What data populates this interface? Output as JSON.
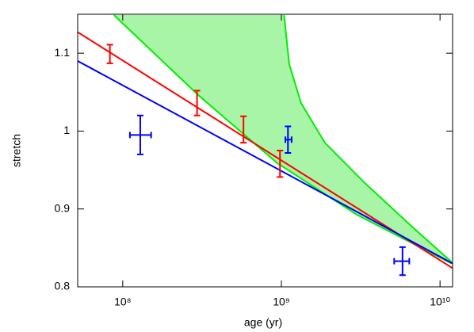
{
  "chart_data": {
    "type": "scatter",
    "x_label": "age (yr)",
    "y_label": "stretch",
    "xscale": "log",
    "xlim": [
      52000000.0,
      12000000000.0
    ],
    "ylim": [
      0.8,
      1.15
    ],
    "xticks": [
      {
        "value": 100000000.0,
        "label": "10⁸"
      },
      {
        "value": 1000000000.0,
        "label": "10⁹"
      },
      {
        "value": 10000000000.0,
        "label": "10¹⁰"
      }
    ],
    "yticks": [
      0.8,
      0.9,
      1,
      1.1
    ],
    "band": {
      "color": "#00ee00",
      "fill": "#a8f5a8",
      "lower": {
        "x": [
          88000000.0,
          300000000.0,
          940000000.0,
          2970000000.0,
          11800000000.0
        ],
        "y": [
          1.149,
          1.046,
          0.959,
          0.893,
          0.83
        ]
      },
      "upper": {
        "x": [
          1040000000.0,
          1120000000.0,
          1330000000.0,
          1880000000.0,
          3330000000.0,
          6600000000.0,
          11800000000.0
        ],
        "y": [
          1.149,
          1.086,
          1.036,
          0.985,
          0.934,
          0.878,
          0.832
        ]
      }
    },
    "lines": [
      {
        "color": "#ff0000",
        "x": [
          52000000.0,
          12000000000.0
        ],
        "y": [
          1.127,
          0.824
        ]
      },
      {
        "color": "#0000ff",
        "x": [
          52000000.0,
          12000000000.0
        ],
        "y": [
          1.09,
          0.83
        ]
      }
    ],
    "series": [
      {
        "color": "#ff0000",
        "x": [
          83000000.0,
          294000000.0,
          577000000.0,
          980000000.0
        ],
        "values": [
          1.099,
          1.036,
          1.002,
          0.958
        ],
        "yerr": [
          0.012,
          0.016,
          0.017,
          0.017
        ]
      },
      {
        "color": "#0000ff",
        "x": [
          129000000.0,
          1100000000.0,
          5800000000.0
        ],
        "values": [
          0.995,
          0.989,
          0.833
        ],
        "yerr": [
          0.025,
          0.017,
          0.018
        ],
        "xlow": [
          111000000.0,
          1060000000.0,
          5140000000.0
        ],
        "xhigh": [
          151000000.0,
          1160000000.0,
          6400000000.0
        ]
      }
    ]
  }
}
